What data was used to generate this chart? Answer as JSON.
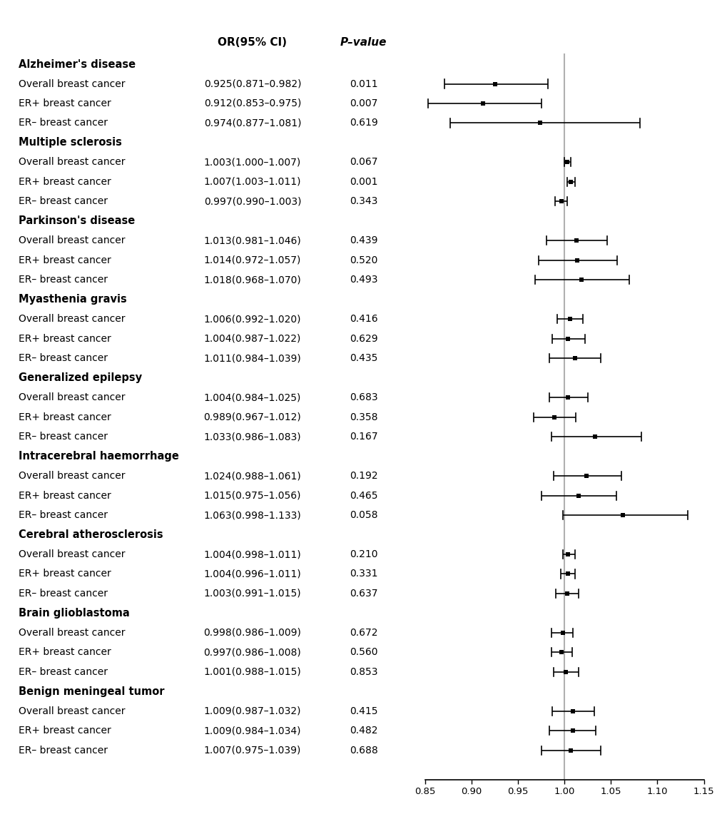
{
  "diseases": [
    {
      "name": "Alzheimer's disease",
      "entries": [
        {
          "label": "Overall breast cancer",
          "or": 0.925,
          "ci_low": 0.871,
          "ci_high": 0.982,
          "pvalue": "0.011"
        },
        {
          "label": "ER+ breast cancer",
          "or": 0.912,
          "ci_low": 0.853,
          "ci_high": 0.975,
          "pvalue": "0.007"
        },
        {
          "label": "ER– breast cancer",
          "or": 0.974,
          "ci_low": 0.877,
          "ci_high": 1.081,
          "pvalue": "0.619"
        }
      ]
    },
    {
      "name": "Multiple sclerosis",
      "entries": [
        {
          "label": "Overall breast cancer",
          "or": 1.003,
          "ci_low": 1.0,
          "ci_high": 1.007,
          "pvalue": "0.067"
        },
        {
          "label": "ER+ breast cancer",
          "or": 1.007,
          "ci_low": 1.003,
          "ci_high": 1.011,
          "pvalue": "0.001"
        },
        {
          "label": "ER– breast cancer",
          "or": 0.997,
          "ci_low": 0.99,
          "ci_high": 1.003,
          "pvalue": "0.343"
        }
      ]
    },
    {
      "name": "Parkinson's disease",
      "entries": [
        {
          "label": "Overall breast cancer",
          "or": 1.013,
          "ci_low": 0.981,
          "ci_high": 1.046,
          "pvalue": "0.439"
        },
        {
          "label": "ER+ breast cancer",
          "or": 1.014,
          "ci_low": 0.972,
          "ci_high": 1.057,
          "pvalue": "0.520"
        },
        {
          "label": "ER– breast cancer",
          "or": 1.018,
          "ci_low": 0.968,
          "ci_high": 1.07,
          "pvalue": "0.493"
        }
      ]
    },
    {
      "name": "Myasthenia gravis",
      "entries": [
        {
          "label": "Overall breast cancer",
          "or": 1.006,
          "ci_low": 0.992,
          "ci_high": 1.02,
          "pvalue": "0.416"
        },
        {
          "label": "ER+ breast cancer",
          "or": 1.004,
          "ci_low": 0.987,
          "ci_high": 1.022,
          "pvalue": "0.629"
        },
        {
          "label": "ER– breast cancer",
          "or": 1.011,
          "ci_low": 0.984,
          "ci_high": 1.039,
          "pvalue": "0.435"
        }
      ]
    },
    {
      "name": "Generalized epilepsy",
      "entries": [
        {
          "label": "Overall breast cancer",
          "or": 1.004,
          "ci_low": 0.984,
          "ci_high": 1.025,
          "pvalue": "0.683"
        },
        {
          "label": "ER+ breast cancer",
          "or": 0.989,
          "ci_low": 0.967,
          "ci_high": 1.012,
          "pvalue": "0.358"
        },
        {
          "label": "ER– breast cancer",
          "or": 1.033,
          "ci_low": 0.986,
          "ci_high": 1.083,
          "pvalue": "0.167"
        }
      ]
    },
    {
      "name": "Intracerebral haemorrhage",
      "entries": [
        {
          "label": "Overall breast cancer",
          "or": 1.024,
          "ci_low": 0.988,
          "ci_high": 1.061,
          "pvalue": "0.192"
        },
        {
          "label": "ER+ breast cancer",
          "or": 1.015,
          "ci_low": 0.975,
          "ci_high": 1.056,
          "pvalue": "0.465"
        },
        {
          "label": "ER– breast cancer",
          "or": 1.063,
          "ci_low": 0.998,
          "ci_high": 1.133,
          "pvalue": "0.058"
        }
      ]
    },
    {
      "name": "Cerebral atherosclerosis",
      "entries": [
        {
          "label": "Overall breast cancer",
          "or": 1.004,
          "ci_low": 0.998,
          "ci_high": 1.011,
          "pvalue": "0.210"
        },
        {
          "label": "ER+ breast cancer",
          "or": 1.004,
          "ci_low": 0.996,
          "ci_high": 1.011,
          "pvalue": "0.331"
        },
        {
          "label": "ER– breast cancer",
          "or": 1.003,
          "ci_low": 0.991,
          "ci_high": 1.015,
          "pvalue": "0.637"
        }
      ]
    },
    {
      "name": "Brain glioblastoma",
      "entries": [
        {
          "label": "Overall breast cancer",
          "or": 0.998,
          "ci_low": 0.986,
          "ci_high": 1.009,
          "pvalue": "0.672"
        },
        {
          "label": "ER+ breast cancer",
          "or": 0.997,
          "ci_low": 0.986,
          "ci_high": 1.008,
          "pvalue": "0.560"
        },
        {
          "label": "ER– breast cancer",
          "or": 1.001,
          "ci_low": 0.988,
          "ci_high": 1.015,
          "pvalue": "0.853"
        }
      ]
    },
    {
      "name": "Benign meningeal tumor",
      "entries": [
        {
          "label": "Overall breast cancer",
          "or": 1.009,
          "ci_low": 0.987,
          "ci_high": 1.032,
          "pvalue": "0.415"
        },
        {
          "label": "ER+ breast cancer",
          "or": 1.009,
          "ci_low": 0.984,
          "ci_high": 1.034,
          "pvalue": "0.482"
        },
        {
          "label": "ER– breast cancer",
          "or": 1.007,
          "ci_low": 0.975,
          "ci_high": 1.039,
          "pvalue": "0.688"
        }
      ]
    }
  ],
  "col_header_or": "OR(95% CI)",
  "col_header_p": "P–value",
  "xlabel_values": [
    0.85,
    0.9,
    0.95,
    1.0,
    1.05,
    1.1,
    1.15
  ],
  "xlim": [
    0.835,
    1.16
  ],
  "ref_line": 1.0,
  "background_color": "#ffffff",
  "text_color": "#000000",
  "ci_line_color": "#000000",
  "marker_color": "#000000",
  "ref_line_color": "#b0b0b0"
}
